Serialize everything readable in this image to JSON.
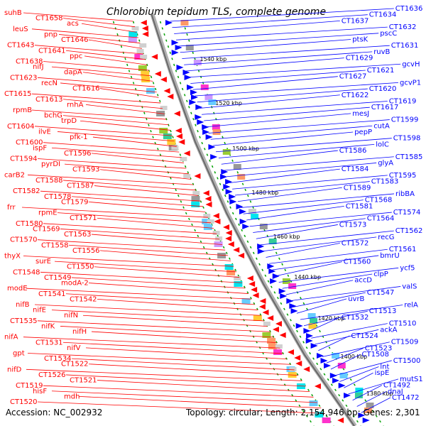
{
  "title": "Chlorobium tepidum TLS, complete genome",
  "footer": {
    "accession": "Accession: NC_002932",
    "topology": "Topology: circular; Length: 2,154,946 bp; Genes: 2,301"
  },
  "colors": {
    "reverse_strand": "#ff0000",
    "forward_strand": "#0000ff",
    "backbone": "#8a8a8a",
    "dotted_track": "#00a000"
  },
  "kbp_ticks": [
    "1540 kbp",
    "1520 kbp",
    "1500 kbp",
    "1480 kbp",
    "1460 kbp",
    "1440 kbp",
    "1420 kbp",
    "1400 kbp",
    "1380 kbp"
  ],
  "left_labels": [
    "suhB",
    "CT1658",
    "acs",
    "leuS",
    "pnp",
    "CT1646",
    "CT1643",
    "CT1641",
    "ppc",
    "CT1638",
    "nifJ",
    "dapA",
    "CT1623",
    "recN",
    "CT1616",
    "CT1615",
    "CT1613",
    "rnhA",
    "rpmB",
    "bchG",
    "trpD",
    "CT1604",
    "ilvE",
    "pfk-1",
    "CT1600",
    "ispF",
    "CT1596",
    "CT1594",
    "pyrDI",
    "CT1593",
    "carB2",
    "CT1588",
    "CT1587",
    "CT1582",
    "CT1578",
    "CT1579",
    "frr",
    "rpmE",
    "CT1571",
    "CT1580",
    "CT1569",
    "CT1563",
    "CT1570",
    "CT1558",
    "CT1556",
    "thyX",
    "surE",
    "CT1550",
    "CT1548",
    "CT1549",
    "modA-2",
    "modE",
    "CT1541",
    "CT1542",
    "nifB",
    "nifE",
    "nifN",
    "CT1535",
    "nifK",
    "nifH",
    "nifA",
    "CT1531",
    "nifV",
    "gpt",
    "CT1534",
    "CT1522",
    "nifD",
    "CT1526",
    "CT1521",
    "CT1519",
    "hisF",
    "mdh",
    "CT1520"
  ],
  "right_labels": [
    "CT1636",
    "CT1634",
    "CT1637",
    "CT1632",
    "pscC",
    "ptsK",
    "CT1631",
    "ruvB",
    "CT1629",
    "gcvH",
    "CT1621",
    "CT1627",
    "gcvP1",
    "CT1620",
    "CT1622",
    "CT1619",
    "CT1617",
    "mesJ",
    "CT1599",
    "cutA",
    "pepP",
    "CT1598",
    "lolC",
    "CT1586",
    "CT1585",
    "glyA",
    "CT1584",
    "CT1595",
    "CT1583",
    "CT1589",
    "ribBA",
    "CT1568",
    "CT1581",
    "CT1574",
    "CT1564",
    "CT1573",
    "CT1562",
    "recG",
    "CT1572",
    "CT1561",
    "bmrU",
    "CT1560",
    "ycf5",
    "clpP",
    "accD",
    "valS",
    "CT1547",
    "uvrB",
    "relA",
    "CT1513",
    "CT1532",
    "CT1510",
    "ackA",
    "CT1524",
    "CT1509",
    "CT1523",
    "CT1508",
    "CT1500",
    "lnt",
    "ispE",
    "mutS1",
    "CT1492",
    "dnaJ",
    "CT1472"
  ]
}
